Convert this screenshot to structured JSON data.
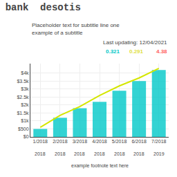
{
  "chart_data": {
    "type": "bar",
    "title": "bank  desotis",
    "subtitle": [
      "Placeholder text for subtitle line one",
      "example of a subtitle"
    ],
    "categories": [
      "1/2018",
      "2/2018",
      "3/2018",
      "4/2018",
      "5/2018",
      "6/2018",
      "7/2018"
    ],
    "series": [
      {
        "type": "bar",
        "color": "#00c8c8",
        "values": [
          500,
          1200,
          1800,
          2200,
          2900,
          3500,
          4200
        ]
      },
      {
        "type": "line",
        "color": "#d4e600",
        "values": [
          600,
          1350,
          1900,
          2600,
          3200,
          3700,
          4300
        ]
      }
    ],
    "ylim": [
      0,
      4600
    ],
    "yticks": [
      {
        "value": 0,
        "label": "$0"
      },
      {
        "value": 500,
        "label": "$500"
      },
      {
        "value": 1000,
        "label": "$1k"
      },
      {
        "value": 1500,
        "label": "$1.5k"
      },
      {
        "value": 2000,
        "label": "$2k"
      },
      {
        "value": 2500,
        "label": "$2.5k"
      },
      {
        "value": 3000,
        "label": "$3k"
      },
      {
        "value": 3500,
        "label": "$3.5k"
      },
      {
        "value": 4000,
        "label": "$4k"
      }
    ],
    "grid": true,
    "annotations": [
      {
        "text": "Last updating: 12/04/2021"
      },
      {
        "text": "0.321",
        "color": "#00c8c8"
      },
      {
        "text": "0.291",
        "color": "#e0e040"
      },
      {
        "text": "4.38",
        "color": "#ff6060"
      },
      {
        "text": "2018",
        "x": "1/2018"
      },
      {
        "text": "2018",
        "x": "2/2018"
      },
      {
        "text": "2018",
        "x": "3/2018"
      },
      {
        "text": "2018",
        "x": "4/2018"
      },
      {
        "text": "2018",
        "x": "5/2018"
      },
      {
        "text": "2018",
        "x": "6/2018"
      },
      {
        "text": "2019",
        "x": "7/2018"
      },
      {
        "text": "example footnote text here"
      }
    ]
  }
}
